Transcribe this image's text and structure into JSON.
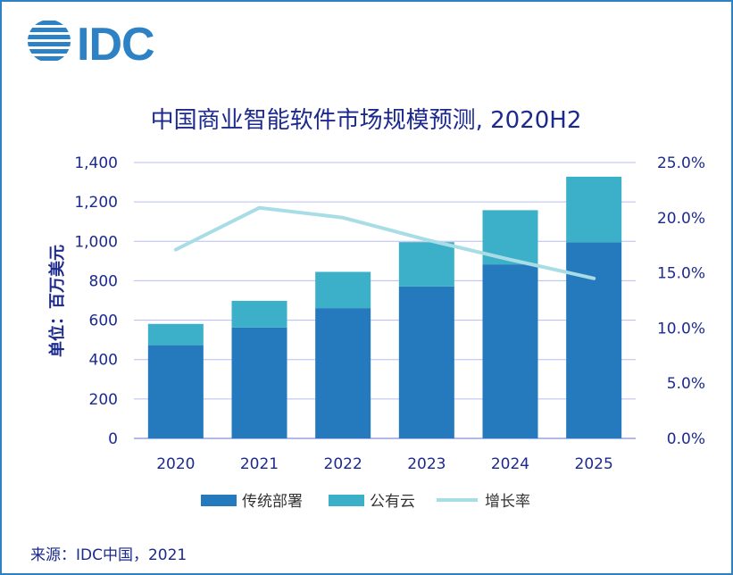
{
  "logo": {
    "text": "IDC",
    "color": "#2d82c5"
  },
  "chart_data": {
    "type": "bar",
    "stacked": true,
    "title": "中国商业智能软件市场规模预测, 2020H2",
    "ylabel": "单位：百万美元",
    "categories": [
      "2020",
      "2021",
      "2022",
      "2023",
      "2024",
      "2025"
    ],
    "ylim": [
      0,
      1400
    ],
    "yticks": [
      0,
      200,
      400,
      600,
      800,
      1000,
      1200,
      1400
    ],
    "ytick_labels": [
      "0",
      "200",
      "400",
      "600",
      "800",
      "1,000",
      "1,200",
      "1,400"
    ],
    "y2lim": [
      0,
      25
    ],
    "y2ticks": [
      0,
      5,
      10,
      15,
      20,
      25
    ],
    "y2tick_labels": [
      "0.0%",
      "5.0%",
      "10.0%",
      "15.0%",
      "20.0%",
      "25.0%"
    ],
    "series": [
      {
        "name": "传统部署",
        "type": "bar",
        "color": "#2579bd",
        "values": [
          473,
          563,
          661,
          771,
          883,
          995
        ]
      },
      {
        "name": "公有云",
        "type": "bar",
        "color": "#3cb0c8",
        "values": [
          108,
          135,
          184,
          225,
          275,
          333
        ]
      },
      {
        "name": "增长率",
        "type": "line",
        "axis": "right",
        "color": "#a8dde6",
        "values": [
          17.1,
          20.9,
          20.0,
          18.0,
          16.2,
          14.5
        ]
      }
    ],
    "grid": true,
    "legend_position": "bottom"
  },
  "source": "来源：IDC中国，2021"
}
